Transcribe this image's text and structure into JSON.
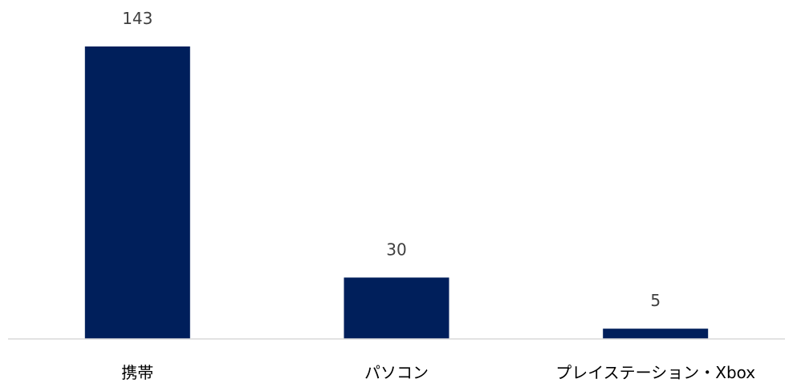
{
  "chart_data": {
    "type": "bar",
    "categories": [
      "携帯",
      "パソコン",
      "プレイステーション・Xbox"
    ],
    "values": [
      143,
      30,
      5
    ],
    "ylim": [
      0,
      143
    ],
    "grid": false,
    "legend": "none",
    "bar_color": "#001f5b",
    "axis_color": "#d9d9d9",
    "label_color": "#404040"
  }
}
